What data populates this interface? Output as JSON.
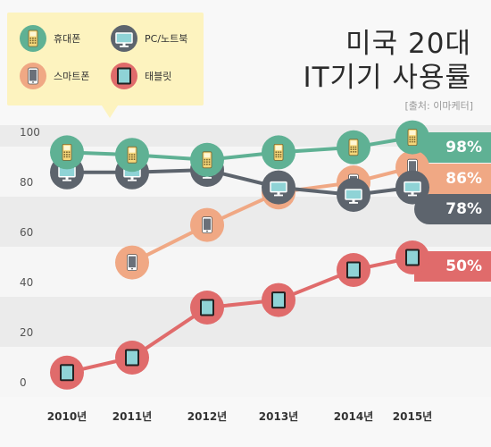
{
  "title_line1": "미국 20대",
  "title_line2": "IT기기 사용률",
  "source": "[출처: 이마케터]",
  "legend": [
    {
      "label": "휴대폰",
      "icon": "feature-phone-icon",
      "color": "#5fb194"
    },
    {
      "label": "PC/노트북",
      "icon": "monitor-icon",
      "color": "#5d646d"
    },
    {
      "label": "스마트폰",
      "icon": "smartphone-icon",
      "color": "#f0a884"
    },
    {
      "label": "태블릿",
      "icon": "tablet-icon",
      "color": "#e06b6b"
    }
  ],
  "chart_data": {
    "type": "line",
    "x": [
      "2010년",
      "2011년",
      "2012년",
      "2013년",
      "2014년",
      "2015년"
    ],
    "yticks": [
      "100",
      "80",
      "60",
      "40",
      "20",
      "0"
    ],
    "ylim": [
      0,
      100
    ],
    "grid": true,
    "legend_position": "top-left",
    "series": [
      {
        "name": "휴대폰",
        "icon": "feature-phone-icon",
        "color": "#5fb194",
        "values": [
          92,
          91,
          89,
          92,
          94,
          98
        ],
        "label": "98%"
      },
      {
        "name": "PC/노트북",
        "icon": "monitor-icon",
        "color": "#5d646d",
        "values": [
          84,
          84,
          85,
          78,
          75,
          78
        ],
        "label": "78%"
      },
      {
        "name": "스마트폰",
        "icon": "smartphone-icon",
        "color": "#f0a884",
        "values": [
          null,
          48,
          63,
          76,
          80,
          86
        ],
        "label": "86%"
      },
      {
        "name": "태블릿",
        "icon": "tablet-icon",
        "color": "#e06b6b",
        "values": [
          4,
          10,
          30,
          33,
          45,
          50
        ],
        "label": "50%"
      }
    ]
  }
}
